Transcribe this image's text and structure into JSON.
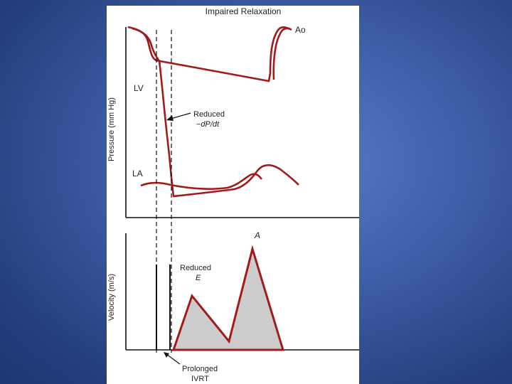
{
  "figure": {
    "title": "Impaired Relaxation",
    "top_panel": {
      "y_axis_label": "Pressure (mm Hg)",
      "curve_labels": {
        "aorta": "Ao",
        "left_ventricle": "LV",
        "left_atrium": "LA"
      },
      "annotation": {
        "line1": "Reduced",
        "line2": "−dP/dt"
      }
    },
    "bottom_panel": {
      "y_axis_label": "Velocity (m/s)",
      "wave_labels": {
        "a_wave": "A"
      },
      "annotation_e": {
        "line1": "Reduced",
        "line2": "E"
      },
      "annotation_ivrt": {
        "line1": "Prolonged",
        "line2": "IVRT"
      }
    },
    "colors": {
      "curve": "#a01c1c",
      "fill": "#cccccc",
      "axis": "#111111",
      "background": "#ffffff",
      "slide_background": "#3f5fa8"
    }
  }
}
